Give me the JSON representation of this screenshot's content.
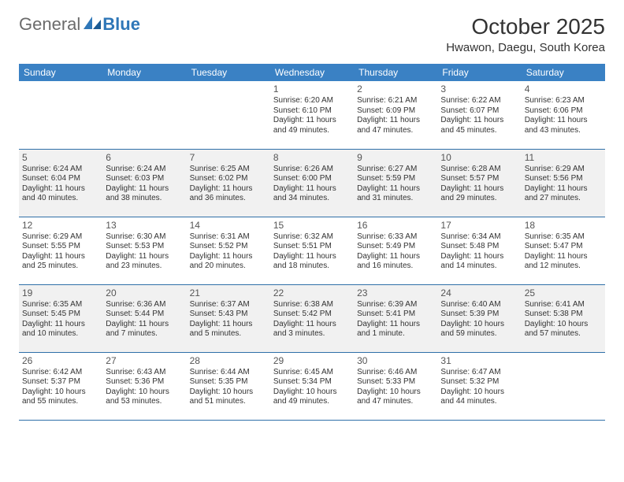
{
  "logo": {
    "general": "General",
    "blue": "Blue"
  },
  "title": "October 2025",
  "location": "Hwawon, Daegu, South Korea",
  "colors": {
    "header_bg": "#3a81c4",
    "row_alt_bg": "#f1f1f1",
    "border": "#2f6fa8",
    "text": "#333333",
    "logo_gray": "#6b6b6b",
    "logo_blue": "#2f77b8"
  },
  "dow": [
    "Sunday",
    "Monday",
    "Tuesday",
    "Wednesday",
    "Thursday",
    "Friday",
    "Saturday"
  ],
  "weeks": [
    [
      null,
      null,
      null,
      {
        "n": "1",
        "sr": "Sunrise: 6:20 AM",
        "ss": "Sunset: 6:10 PM",
        "dl": "Daylight: 11 hours and 49 minutes."
      },
      {
        "n": "2",
        "sr": "Sunrise: 6:21 AM",
        "ss": "Sunset: 6:09 PM",
        "dl": "Daylight: 11 hours and 47 minutes."
      },
      {
        "n": "3",
        "sr": "Sunrise: 6:22 AM",
        "ss": "Sunset: 6:07 PM",
        "dl": "Daylight: 11 hours and 45 minutes."
      },
      {
        "n": "4",
        "sr": "Sunrise: 6:23 AM",
        "ss": "Sunset: 6:06 PM",
        "dl": "Daylight: 11 hours and 43 minutes."
      }
    ],
    [
      {
        "n": "5",
        "sr": "Sunrise: 6:24 AM",
        "ss": "Sunset: 6:04 PM",
        "dl": "Daylight: 11 hours and 40 minutes."
      },
      {
        "n": "6",
        "sr": "Sunrise: 6:24 AM",
        "ss": "Sunset: 6:03 PM",
        "dl": "Daylight: 11 hours and 38 minutes."
      },
      {
        "n": "7",
        "sr": "Sunrise: 6:25 AM",
        "ss": "Sunset: 6:02 PM",
        "dl": "Daylight: 11 hours and 36 minutes."
      },
      {
        "n": "8",
        "sr": "Sunrise: 6:26 AM",
        "ss": "Sunset: 6:00 PM",
        "dl": "Daylight: 11 hours and 34 minutes."
      },
      {
        "n": "9",
        "sr": "Sunrise: 6:27 AM",
        "ss": "Sunset: 5:59 PM",
        "dl": "Daylight: 11 hours and 31 minutes."
      },
      {
        "n": "10",
        "sr": "Sunrise: 6:28 AM",
        "ss": "Sunset: 5:57 PM",
        "dl": "Daylight: 11 hours and 29 minutes."
      },
      {
        "n": "11",
        "sr": "Sunrise: 6:29 AM",
        "ss": "Sunset: 5:56 PM",
        "dl": "Daylight: 11 hours and 27 minutes."
      }
    ],
    [
      {
        "n": "12",
        "sr": "Sunrise: 6:29 AM",
        "ss": "Sunset: 5:55 PM",
        "dl": "Daylight: 11 hours and 25 minutes."
      },
      {
        "n": "13",
        "sr": "Sunrise: 6:30 AM",
        "ss": "Sunset: 5:53 PM",
        "dl": "Daylight: 11 hours and 23 minutes."
      },
      {
        "n": "14",
        "sr": "Sunrise: 6:31 AM",
        "ss": "Sunset: 5:52 PM",
        "dl": "Daylight: 11 hours and 20 minutes."
      },
      {
        "n": "15",
        "sr": "Sunrise: 6:32 AM",
        "ss": "Sunset: 5:51 PM",
        "dl": "Daylight: 11 hours and 18 minutes."
      },
      {
        "n": "16",
        "sr": "Sunrise: 6:33 AM",
        "ss": "Sunset: 5:49 PM",
        "dl": "Daylight: 11 hours and 16 minutes."
      },
      {
        "n": "17",
        "sr": "Sunrise: 6:34 AM",
        "ss": "Sunset: 5:48 PM",
        "dl": "Daylight: 11 hours and 14 minutes."
      },
      {
        "n": "18",
        "sr": "Sunrise: 6:35 AM",
        "ss": "Sunset: 5:47 PM",
        "dl": "Daylight: 11 hours and 12 minutes."
      }
    ],
    [
      {
        "n": "19",
        "sr": "Sunrise: 6:35 AM",
        "ss": "Sunset: 5:45 PM",
        "dl": "Daylight: 11 hours and 10 minutes."
      },
      {
        "n": "20",
        "sr": "Sunrise: 6:36 AM",
        "ss": "Sunset: 5:44 PM",
        "dl": "Daylight: 11 hours and 7 minutes."
      },
      {
        "n": "21",
        "sr": "Sunrise: 6:37 AM",
        "ss": "Sunset: 5:43 PM",
        "dl": "Daylight: 11 hours and 5 minutes."
      },
      {
        "n": "22",
        "sr": "Sunrise: 6:38 AM",
        "ss": "Sunset: 5:42 PM",
        "dl": "Daylight: 11 hours and 3 minutes."
      },
      {
        "n": "23",
        "sr": "Sunrise: 6:39 AM",
        "ss": "Sunset: 5:41 PM",
        "dl": "Daylight: 11 hours and 1 minute."
      },
      {
        "n": "24",
        "sr": "Sunrise: 6:40 AM",
        "ss": "Sunset: 5:39 PM",
        "dl": "Daylight: 10 hours and 59 minutes."
      },
      {
        "n": "25",
        "sr": "Sunrise: 6:41 AM",
        "ss": "Sunset: 5:38 PM",
        "dl": "Daylight: 10 hours and 57 minutes."
      }
    ],
    [
      {
        "n": "26",
        "sr": "Sunrise: 6:42 AM",
        "ss": "Sunset: 5:37 PM",
        "dl": "Daylight: 10 hours and 55 minutes."
      },
      {
        "n": "27",
        "sr": "Sunrise: 6:43 AM",
        "ss": "Sunset: 5:36 PM",
        "dl": "Daylight: 10 hours and 53 minutes."
      },
      {
        "n": "28",
        "sr": "Sunrise: 6:44 AM",
        "ss": "Sunset: 5:35 PM",
        "dl": "Daylight: 10 hours and 51 minutes."
      },
      {
        "n": "29",
        "sr": "Sunrise: 6:45 AM",
        "ss": "Sunset: 5:34 PM",
        "dl": "Daylight: 10 hours and 49 minutes."
      },
      {
        "n": "30",
        "sr": "Sunrise: 6:46 AM",
        "ss": "Sunset: 5:33 PM",
        "dl": "Daylight: 10 hours and 47 minutes."
      },
      {
        "n": "31",
        "sr": "Sunrise: 6:47 AM",
        "ss": "Sunset: 5:32 PM",
        "dl": "Daylight: 10 hours and 44 minutes."
      },
      null
    ]
  ]
}
